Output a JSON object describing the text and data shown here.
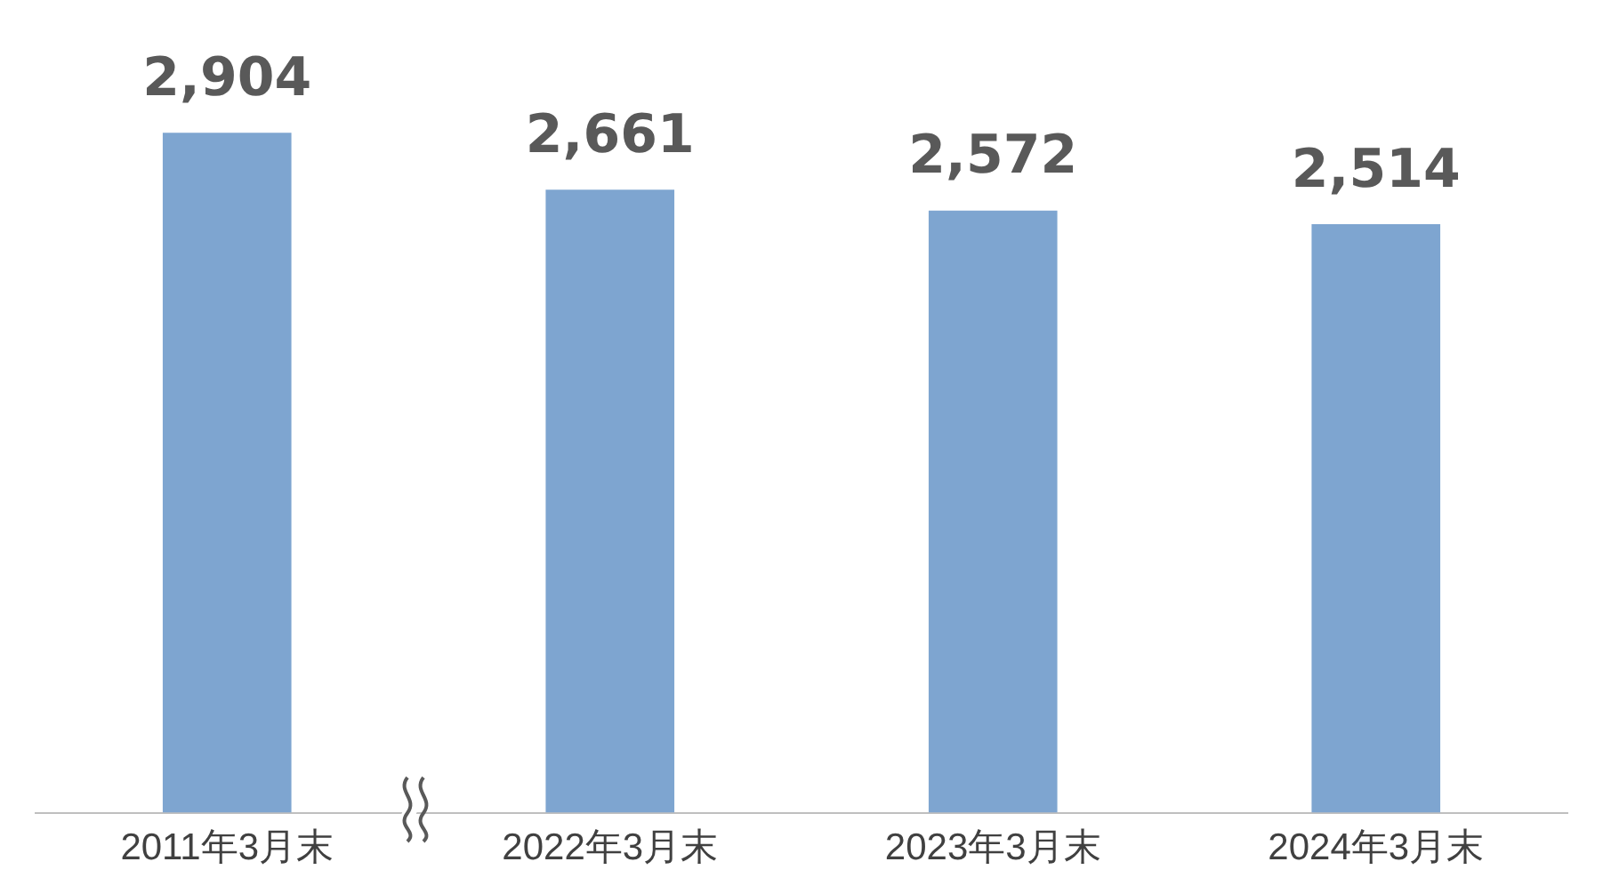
{
  "chart_data": {
    "type": "bar",
    "categories": [
      "2011年3月末",
      "2022年3月末",
      "2023年3月末",
      "2024年3月末"
    ],
    "values": [
      2904,
      2661,
      2572,
      2514
    ],
    "color": "#7ea5d0",
    "value_labels": [
      "2,904",
      "2,661",
      "2,572",
      "2,514"
    ],
    "grid": false,
    "legend": false
  }
}
